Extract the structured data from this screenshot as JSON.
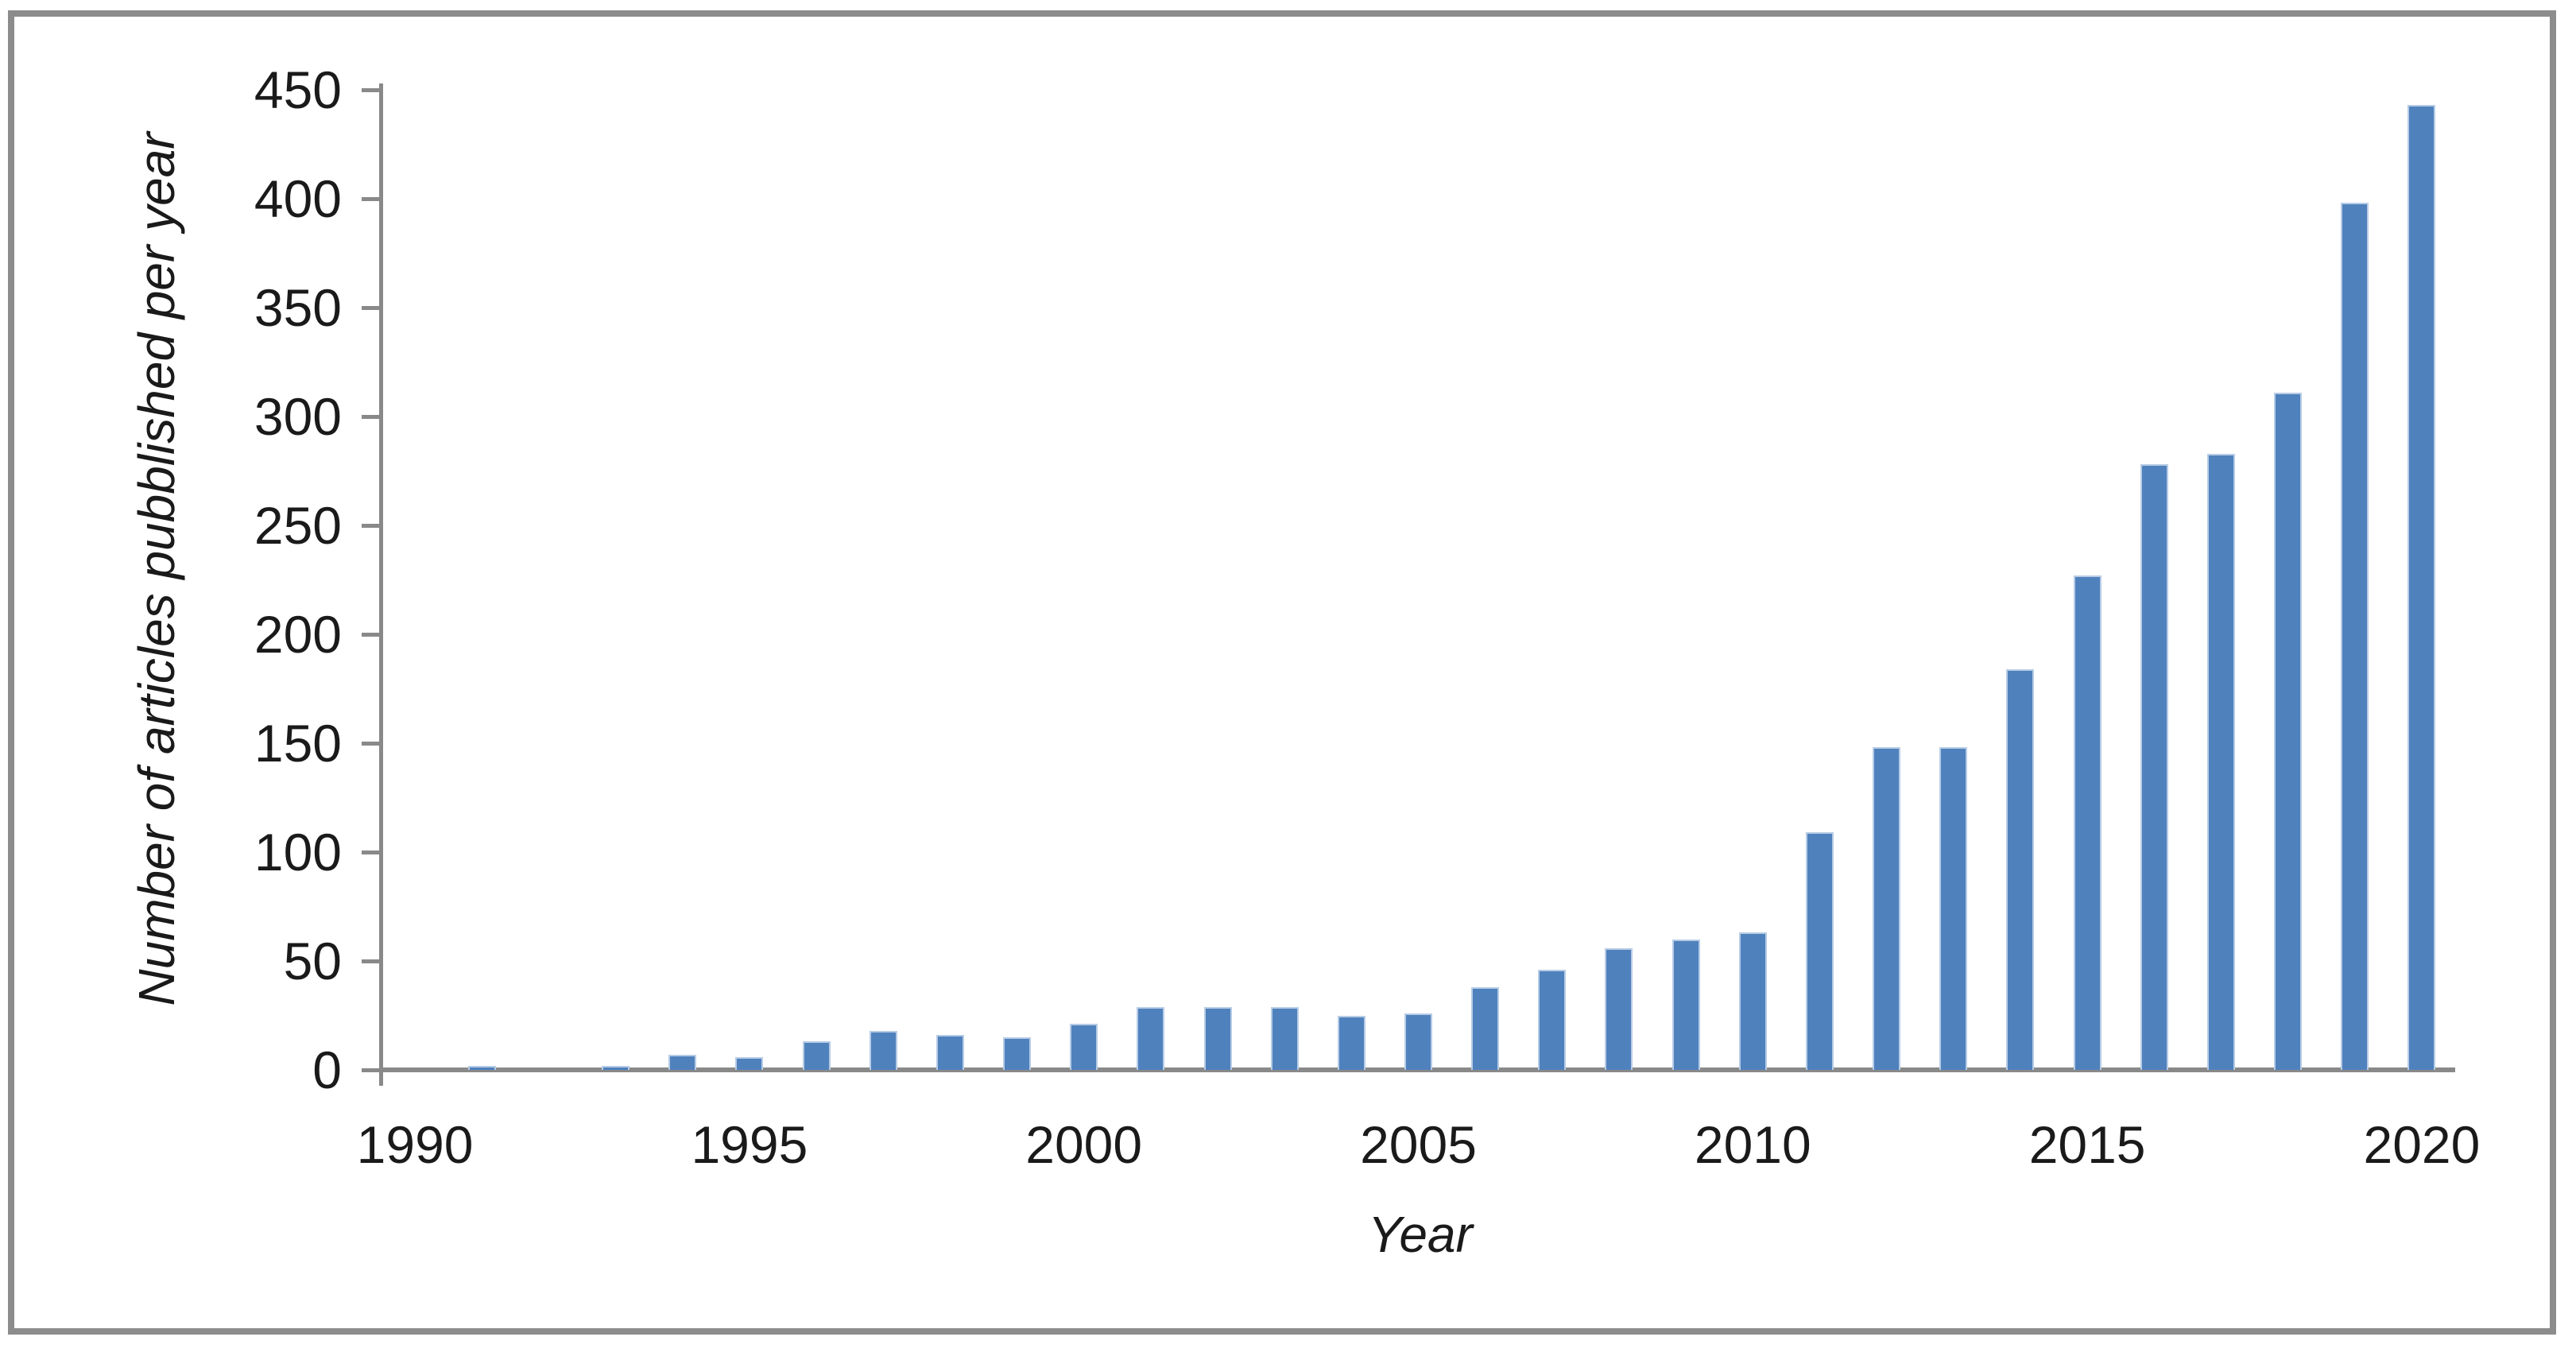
{
  "figure": {
    "frame_color": "#8C8C8C",
    "background_color": "#FFFFFF"
  },
  "chart_data": {
    "type": "bar",
    "title": "",
    "xlabel": "Year",
    "ylabel": "Number of articles pubblished per year",
    "x": [
      1990,
      1991,
      1992,
      1993,
      1994,
      1995,
      1996,
      1997,
      1998,
      1999,
      2000,
      2001,
      2002,
      2003,
      2004,
      2005,
      2006,
      2007,
      2008,
      2009,
      2010,
      2011,
      2012,
      2013,
      2014,
      2015,
      2016,
      2017,
      2018,
      2019,
      2020
    ],
    "values": [
      0,
      2,
      0,
      2,
      7,
      6,
      13,
      18,
      16,
      15,
      21,
      29,
      29,
      29,
      25,
      26,
      38,
      46,
      56,
      60,
      63,
      109,
      148,
      148,
      184,
      227,
      278,
      283,
      311,
      398,
      443
    ],
    "ylim": [
      0,
      450
    ],
    "ytick_step": 50,
    "ytick_labels": [
      "0",
      "50",
      "100",
      "150",
      "200",
      "250",
      "300",
      "350",
      "400",
      "450"
    ],
    "xtick_labels": [
      "1990",
      "1995",
      "2000",
      "2005",
      "2010",
      "2015",
      "2020"
    ],
    "grid": false,
    "legend": null,
    "bar_color": "#4F81BD",
    "bar_border_color": "#B7CCE5",
    "axis_color": "#898989",
    "text_color": "#1A1A1A"
  }
}
